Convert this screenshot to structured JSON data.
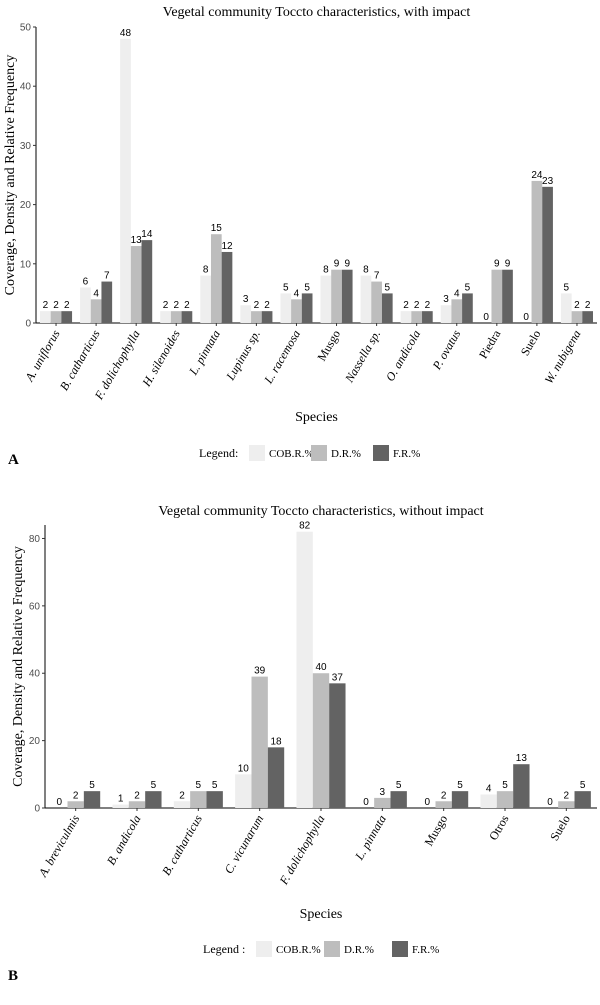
{
  "colors": {
    "cob": "#eeeeee",
    "dr": "#bdbdbd",
    "fr": "#636363",
    "axis": "#000000"
  },
  "panels": [
    {
      "letter": "A"
    },
    {
      "letter": "B"
    }
  ],
  "chart_data": [
    {
      "type": "bar",
      "title": "Vegetal community Toccto characteristics, with impact",
      "xlabel": "Species",
      "ylabel": "Coverage, Density and Relative Frequency",
      "ylim": [
        0,
        50
      ],
      "yticks": [
        0,
        10,
        20,
        30,
        40,
        50
      ],
      "legend_title": "Legend:",
      "categories": [
        "A. uniflorus",
        "B. catharticus",
        "F. dolichophylla",
        "H. silenoides",
        "L. pinnata",
        "Lupinus sp.",
        "L. racemosa",
        "Musgo",
        "Nassella sp.",
        "O. andicola",
        "P. ovatus",
        "Piedra",
        "Suelo",
        "W. nubigena"
      ],
      "italic": [
        true,
        true,
        true,
        true,
        true,
        true,
        true,
        false,
        true,
        true,
        true,
        false,
        false,
        true
      ],
      "series": [
        {
          "name": "COB.R.%",
          "values": [
            2,
            6,
            48,
            2,
            8,
            3,
            5,
            8,
            8,
            2,
            3,
            0,
            0,
            5
          ]
        },
        {
          "name": "D.R.%",
          "values": [
            2,
            4,
            13,
            2,
            15,
            2,
            4,
            9,
            7,
            2,
            4,
            9,
            24,
            2
          ]
        },
        {
          "name": "F.R.%",
          "values": [
            2,
            7,
            14,
            2,
            12,
            2,
            5,
            9,
            5,
            2,
            5,
            9,
            23,
            2
          ]
        }
      ]
    },
    {
      "type": "bar",
      "title": "Vegetal community Toccto characteristics, without impact",
      "xlabel": "Species",
      "ylabel": "Coverage, Density and Relative Frequency",
      "ylim": [
        0,
        84
      ],
      "yticks": [
        0,
        20,
        40,
        60,
        80
      ],
      "legend_title": "Legend :",
      "categories": [
        "A. breviculmis",
        "B. andicola",
        "B. catharticus",
        "C. vicunarum",
        "F. dolichophylla",
        "L. pinnata",
        "Musgo",
        "Otros",
        "Suelo"
      ],
      "italic": [
        true,
        true,
        true,
        true,
        true,
        true,
        false,
        false,
        false
      ],
      "series": [
        {
          "name": "COB.R.%",
          "values": [
            0,
            1,
            2,
            10,
            82,
            0,
            0,
            4,
            0
          ]
        },
        {
          "name": "D.R.%",
          "values": [
            2,
            2,
            5,
            39,
            40,
            3,
            2,
            5,
            2
          ]
        },
        {
          "name": "F.R.%",
          "values": [
            5,
            5,
            5,
            18,
            37,
            5,
            5,
            13,
            5
          ]
        }
      ]
    }
  ]
}
